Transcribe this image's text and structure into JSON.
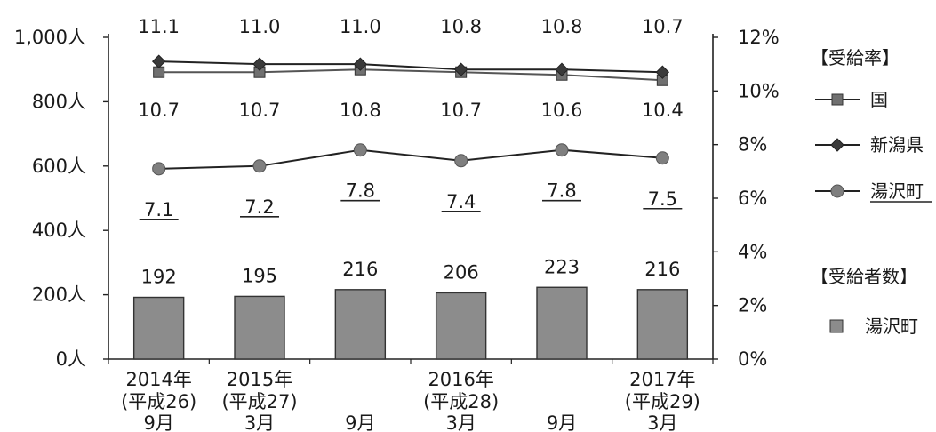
{
  "chart_data": {
    "type": "bar+line",
    "categories": [
      {
        "year": "2014年",
        "era": "(平成26)",
        "month": "9月"
      },
      {
        "year": "2015年",
        "era": "(平成27)",
        "month": "3月"
      },
      {
        "year": "",
        "era": "",
        "month": "9月"
      },
      {
        "year": "2016年",
        "era": "(平成28)",
        "month": "3月"
      },
      {
        "year": "",
        "era": "",
        "month": "9月"
      },
      {
        "year": "2017年",
        "era": "(平成29)",
        "month": "3月"
      }
    ],
    "bars": {
      "name": "湯沢町",
      "values": [
        192,
        195,
        216,
        206,
        223,
        216
      ],
      "labels": [
        "192",
        "195",
        "216",
        "206",
        "223",
        "216"
      ],
      "axis": "left",
      "color": "#8c8c8c"
    },
    "lines": [
      {
        "name": "国",
        "marker": "square",
        "values": [
          10.7,
          10.7,
          10.8,
          10.7,
          10.6,
          10.4
        ],
        "labels": [
          "10.7",
          "10.7",
          "10.8",
          "10.7",
          "10.6",
          "10.4"
        ],
        "axis": "right",
        "color": "#707070"
      },
      {
        "name": "新潟県",
        "marker": "diamond",
        "values": [
          11.1,
          11.0,
          11.0,
          10.8,
          10.8,
          10.7
        ],
        "labels": [
          "11.1",
          "11.0",
          "11.0",
          "10.8",
          "10.8",
          "10.7"
        ],
        "axis": "right",
        "color": "#3a3a3a"
      },
      {
        "name": "湯沢町",
        "marker": "circle",
        "values": [
          7.1,
          7.2,
          7.8,
          7.4,
          7.8,
          7.5
        ],
        "labels": [
          "7.1",
          "7.2",
          "7.8",
          "7.4",
          "7.8",
          "7.5"
        ],
        "axis": "right",
        "color": "#7f7f7f",
        "underlined_labels": true
      }
    ],
    "y_left": {
      "min": 0,
      "max": 1000,
      "ticks": [
        0,
        200,
        400,
        600,
        800,
        1000
      ],
      "tick_labels": [
        "0人",
        "200人",
        "400人",
        "600人",
        "800人",
        "1,000人"
      ]
    },
    "y_right": {
      "min": 0,
      "max": 12,
      "ticks": [
        0,
        2,
        4,
        6,
        8,
        10,
        12
      ],
      "tick_labels": [
        "0%",
        "2%",
        "4%",
        "6%",
        "8%",
        "10%",
        "12%"
      ]
    },
    "legend": {
      "position": "right",
      "rate_heading": "【受給率】",
      "rate_items": [
        {
          "label": "国",
          "marker": "square"
        },
        {
          "label": "新潟県",
          "marker": "diamond"
        },
        {
          "label": "湯沢町",
          "marker": "circle"
        }
      ],
      "count_heading": "【受給者数】",
      "count_items": [
        {
          "label": "湯沢町",
          "marker": "bar"
        }
      ]
    }
  }
}
